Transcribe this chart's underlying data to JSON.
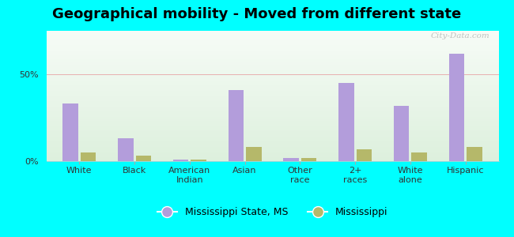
{
  "title": "Geographical mobility - Moved from different state",
  "categories": [
    "White",
    "Black",
    "American\nIndian",
    "Asian",
    "Other\nrace",
    "2+\nraces",
    "White\nalone",
    "Hispanic"
  ],
  "ms_state_values": [
    33,
    13,
    1,
    41,
    2,
    45,
    32,
    62
  ],
  "ms_values": [
    5,
    3,
    1,
    8,
    2,
    7,
    5,
    8
  ],
  "bar_color_state": "#b39ddb",
  "bar_color_ms": "#b5b86a",
  "background_color": "#00ffff",
  "ylim": [
    0,
    75
  ],
  "yticks": [
    0,
    50
  ],
  "ytick_labels": [
    "0%",
    "50%"
  ],
  "legend_label_state": "Mississippi State, MS",
  "legend_label_ms": "Mississippi",
  "bar_width": 0.28,
  "watermark": "City-Data.com",
  "title_fontsize": 13,
  "tick_fontsize": 8,
  "legend_fontsize": 9,
  "grid_color": "#e8b0b0",
  "plot_bg_topleft": [
    1.0,
    1.0,
    1.0
  ],
  "plot_bg_topright": [
    0.93,
    0.97,
    0.93
  ],
  "plot_bg_bottomleft": [
    0.88,
    0.95,
    0.88
  ],
  "plot_bg_bottomright": [
    0.85,
    0.93,
    0.85
  ]
}
